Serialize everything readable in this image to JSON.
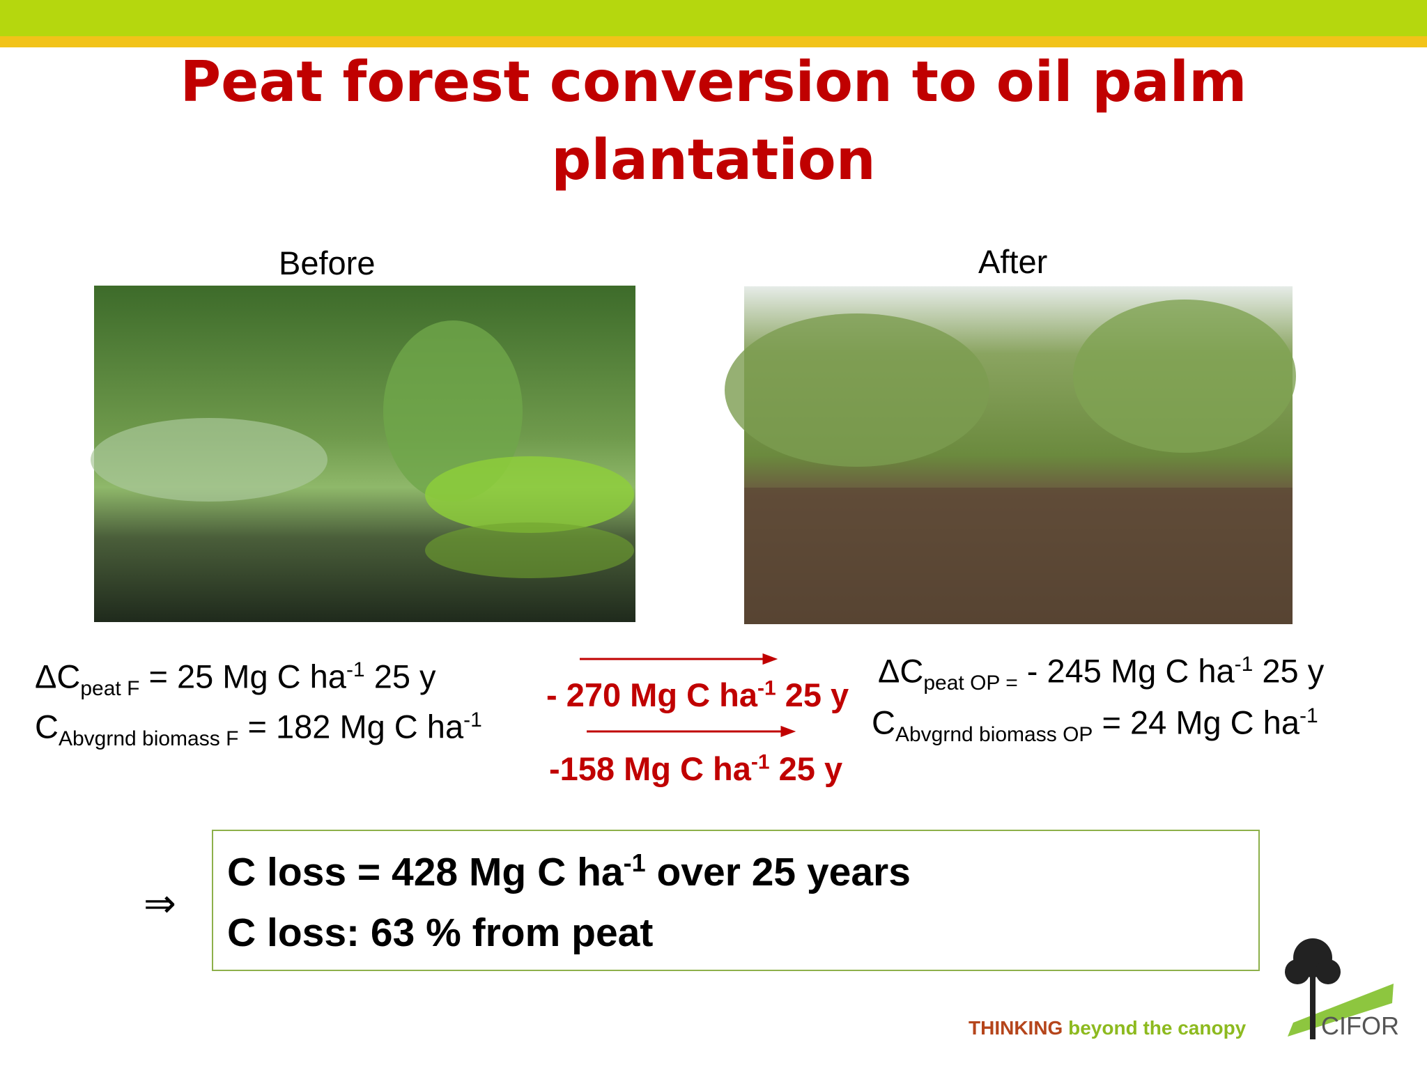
{
  "header": {
    "title": "Peat forest conversion to oil palm plantation"
  },
  "before": {
    "label": "Before",
    "peat": {
      "symbol": "ΔC",
      "subscript": "peat F",
      "equation": "= 25 Mg C ha",
      "superscript": "-1",
      "rest": "25 y"
    },
    "biomass": {
      "symbol": "C",
      "subscript": "Abvgrnd biomass F",
      "equation": "= 182 Mg C ha",
      "superscript": "-1"
    }
  },
  "after": {
    "label": "After",
    "peat": {
      "symbol": "ΔC",
      "subscript": "peat OP =",
      "equation": "- 245 Mg C ha",
      "superscript": "-1",
      "rest": "25 y"
    },
    "biomass": {
      "symbol": "C",
      "subscript": "Abvgrnd biomass OP",
      "equation": "= 24 Mg C ha",
      "superscript": "-1"
    }
  },
  "change": {
    "peat": {
      "text": "- 270 Mg C ha",
      "superscript": "-1",
      "rest": "25 y"
    },
    "biomass": {
      "text": "-158 Mg C ha",
      "superscript": "-1",
      "rest": "25 y"
    }
  },
  "summary": {
    "arrow": "⇒",
    "total": {
      "text": "C loss = 428 Mg C ha",
      "superscript": "-1",
      "rest": "over 25 years"
    },
    "peat_share": "C loss: 63 % from peat"
  },
  "footer": {
    "tagline_bold": "THINKING",
    "tagline": "beyond the canopy",
    "logo": "CIFOR"
  }
}
